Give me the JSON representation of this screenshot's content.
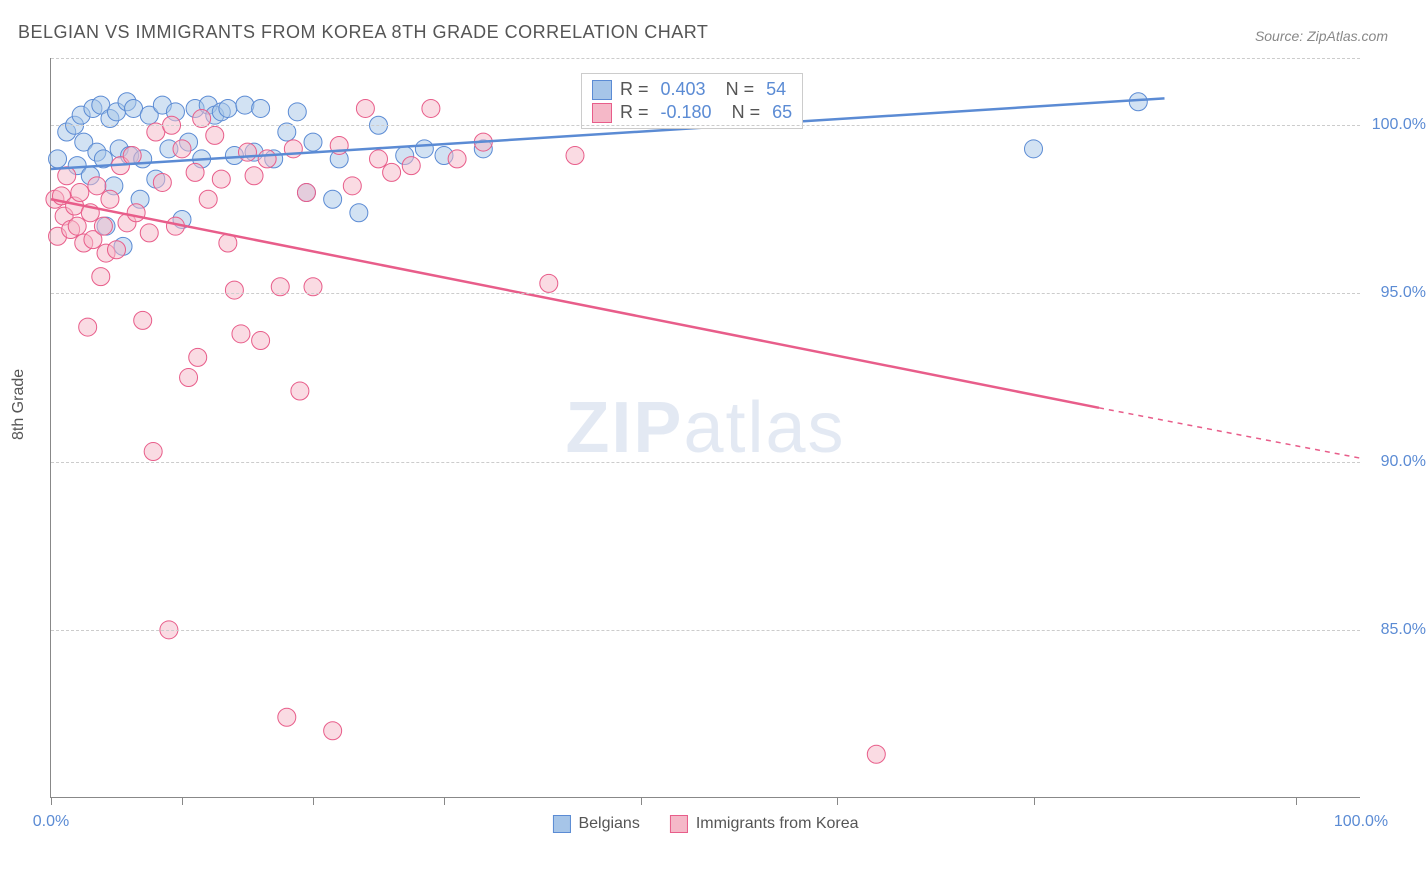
{
  "title": "BELGIAN VS IMMIGRANTS FROM KOREA 8TH GRADE CORRELATION CHART",
  "source": "Source: ZipAtlas.com",
  "y_label": "8th Grade",
  "watermark_bold": "ZIP",
  "watermark_light": "atlas",
  "chart": {
    "type": "scatter",
    "background_color": "#ffffff",
    "grid_color": "#cccccc",
    "axis_color": "#888888",
    "tick_label_color": "#5b8bd4",
    "title_fontsize": 18,
    "label_fontsize": 16,
    "xlim": [
      0,
      100
    ],
    "ylim": [
      80,
      102
    ],
    "y_gridlines": [
      85,
      90,
      95,
      100,
      102
    ],
    "y_tick_labels": [
      {
        "v": 85,
        "t": "85.0%"
      },
      {
        "v": 90,
        "t": "90.0%"
      },
      {
        "v": 95,
        "t": "95.0%"
      },
      {
        "v": 100,
        "t": "100.0%"
      }
    ],
    "x_ticks": [
      0,
      10,
      20,
      30,
      45,
      60,
      75,
      95
    ],
    "x_tick_labels": [
      {
        "v": 0,
        "t": "0.0%"
      },
      {
        "v": 100,
        "t": "100.0%"
      }
    ],
    "marker_radius": 9,
    "marker_opacity": 0.5,
    "line_width": 2.5,
    "series": [
      {
        "name": "Belgians",
        "color_fill": "#a6c5e8",
        "color_stroke": "#5b8bd4",
        "R": "0.403",
        "N": "54",
        "regression": {
          "x1": 0,
          "y1": 98.7,
          "x2": 85,
          "y2": 100.8
        },
        "points": [
          [
            0.5,
            99.0
          ],
          [
            1.2,
            99.8
          ],
          [
            1.8,
            100.0
          ],
          [
            2.0,
            98.8
          ],
          [
            2.3,
            100.3
          ],
          [
            2.5,
            99.5
          ],
          [
            3.0,
            98.5
          ],
          [
            3.2,
            100.5
          ],
          [
            3.5,
            99.2
          ],
          [
            3.8,
            100.6
          ],
          [
            4.0,
            99.0
          ],
          [
            4.2,
            97.0
          ],
          [
            4.5,
            100.2
          ],
          [
            4.8,
            98.2
          ],
          [
            5.0,
            100.4
          ],
          [
            5.2,
            99.3
          ],
          [
            5.5,
            96.4
          ],
          [
            5.8,
            100.7
          ],
          [
            6.0,
            99.1
          ],
          [
            6.3,
            100.5
          ],
          [
            6.8,
            97.8
          ],
          [
            7.0,
            99.0
          ],
          [
            7.5,
            100.3
          ],
          [
            8.0,
            98.4
          ],
          [
            8.5,
            100.6
          ],
          [
            9.0,
            99.3
          ],
          [
            9.5,
            100.4
          ],
          [
            10.0,
            97.2
          ],
          [
            10.5,
            99.5
          ],
          [
            11.0,
            100.5
          ],
          [
            11.5,
            99.0
          ],
          [
            12.0,
            100.6
          ],
          [
            12.5,
            100.3
          ],
          [
            13.0,
            100.4
          ],
          [
            13.5,
            100.5
          ],
          [
            14.0,
            99.1
          ],
          [
            14.8,
            100.6
          ],
          [
            15.5,
            99.2
          ],
          [
            16.0,
            100.5
          ],
          [
            17.0,
            99.0
          ],
          [
            18.0,
            99.8
          ],
          [
            18.8,
            100.4
          ],
          [
            19.5,
            98.0
          ],
          [
            20.0,
            99.5
          ],
          [
            21.5,
            97.8
          ],
          [
            22.0,
            99.0
          ],
          [
            23.5,
            97.4
          ],
          [
            25.0,
            100.0
          ],
          [
            27.0,
            99.1
          ],
          [
            28.5,
            99.3
          ],
          [
            30.0,
            99.1
          ],
          [
            33.0,
            99.3
          ],
          [
            75.0,
            99.3
          ],
          [
            83.0,
            100.7
          ]
        ]
      },
      {
        "name": "Immigrants from Korea",
        "color_fill": "#f5b8c8",
        "color_stroke": "#e85d8a",
        "R": "-0.180",
        "N": "65",
        "regression": {
          "x1": 0,
          "y1": 97.8,
          "x2": 80,
          "y2": 91.6
        },
        "regression_dash": {
          "x1": 80,
          "y1": 91.6,
          "x2": 100,
          "y2": 90.1
        },
        "points": [
          [
            0.3,
            97.8
          ],
          [
            0.5,
            96.7
          ],
          [
            0.8,
            97.9
          ],
          [
            1.0,
            97.3
          ],
          [
            1.2,
            98.5
          ],
          [
            1.5,
            96.9
          ],
          [
            1.8,
            97.6
          ],
          [
            2.0,
            97.0
          ],
          [
            2.2,
            98.0
          ],
          [
            2.5,
            96.5
          ],
          [
            2.8,
            94.0
          ],
          [
            3.0,
            97.4
          ],
          [
            3.2,
            96.6
          ],
          [
            3.5,
            98.2
          ],
          [
            3.8,
            95.5
          ],
          [
            4.0,
            97.0
          ],
          [
            4.2,
            96.2
          ],
          [
            4.5,
            97.8
          ],
          [
            5.0,
            96.3
          ],
          [
            5.3,
            98.8
          ],
          [
            5.8,
            97.1
          ],
          [
            6.2,
            99.1
          ],
          [
            6.5,
            97.4
          ],
          [
            7.0,
            94.2
          ],
          [
            7.5,
            96.8
          ],
          [
            7.8,
            90.3
          ],
          [
            8.0,
            99.8
          ],
          [
            8.5,
            98.3
          ],
          [
            9.0,
            85.0
          ],
          [
            9.2,
            100.0
          ],
          [
            9.5,
            97.0
          ],
          [
            10.0,
            99.3
          ],
          [
            10.5,
            92.5
          ],
          [
            11.0,
            98.6
          ],
          [
            11.2,
            93.1
          ],
          [
            11.5,
            100.2
          ],
          [
            12.0,
            97.8
          ],
          [
            12.5,
            99.7
          ],
          [
            13.0,
            98.4
          ],
          [
            13.5,
            96.5
          ],
          [
            14.0,
            95.1
          ],
          [
            14.5,
            93.8
          ],
          [
            15.0,
            99.2
          ],
          [
            15.5,
            98.5
          ],
          [
            16.0,
            93.6
          ],
          [
            16.5,
            99.0
          ],
          [
            17.5,
            95.2
          ],
          [
            18.0,
            82.4
          ],
          [
            18.5,
            99.3
          ],
          [
            19.0,
            92.1
          ],
          [
            19.5,
            98.0
          ],
          [
            20.0,
            95.2
          ],
          [
            21.5,
            82.0
          ],
          [
            22.0,
            99.4
          ],
          [
            23.0,
            98.2
          ],
          [
            24.0,
            100.5
          ],
          [
            25.0,
            99.0
          ],
          [
            26.0,
            98.6
          ],
          [
            27.5,
            98.8
          ],
          [
            29.0,
            100.5
          ],
          [
            31.0,
            99.0
          ],
          [
            33.0,
            99.5
          ],
          [
            38.0,
            95.3
          ],
          [
            40.0,
            99.1
          ],
          [
            63.0,
            81.3
          ]
        ]
      }
    ],
    "legend": {
      "R_label": "R =",
      "N_label": "N ="
    },
    "bottom_legend": [
      {
        "label": "Belgians",
        "fill": "#a6c5e8",
        "stroke": "#5b8bd4"
      },
      {
        "label": "Immigrants from Korea",
        "fill": "#f5b8c8",
        "stroke": "#e85d8a"
      }
    ]
  }
}
